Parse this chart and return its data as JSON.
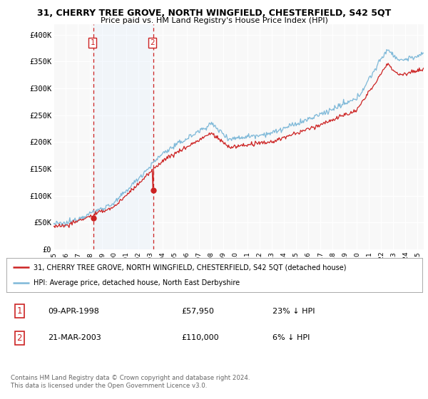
{
  "title": "31, CHERRY TREE GROVE, NORTH WINGFIELD, CHESTERFIELD, S42 5QT",
  "subtitle": "Price paid vs. HM Land Registry's House Price Index (HPI)",
  "ylim": [
    0,
    420000
  ],
  "yticks": [
    0,
    50000,
    100000,
    150000,
    200000,
    250000,
    300000,
    350000,
    400000
  ],
  "ytick_labels": [
    "£0",
    "£50K",
    "£100K",
    "£150K",
    "£200K",
    "£250K",
    "£300K",
    "£350K",
    "£400K"
  ],
  "hpi_color": "#7db8d8",
  "price_color": "#cc2222",
  "vline_color": "#cc2222",
  "shade_color": "#ddeeff",
  "transaction1_year": 1998.27,
  "transaction1_price": 57950,
  "transaction2_year": 2003.21,
  "transaction2_price": 110000,
  "transaction1": {
    "date": "09-APR-1998",
    "price": 57950,
    "pct": "23% ↓ HPI"
  },
  "transaction2": {
    "date": "21-MAR-2003",
    "price": 110000,
    "pct": "6% ↓ HPI"
  },
  "legend_line1": "31, CHERRY TREE GROVE, NORTH WINGFIELD, CHESTERFIELD, S42 5QT (detached house)",
  "legend_line2": "HPI: Average price, detached house, North East Derbyshire",
  "footer": "Contains HM Land Registry data © Crown copyright and database right 2024.\nThis data is licensed under the Open Government Licence v3.0.",
  "background_color": "#ffffff",
  "plot_bg_color": "#f8f8f8",
  "grid_color": "#ffffff",
  "xstart": 1995,
  "xend": 2025.5
}
